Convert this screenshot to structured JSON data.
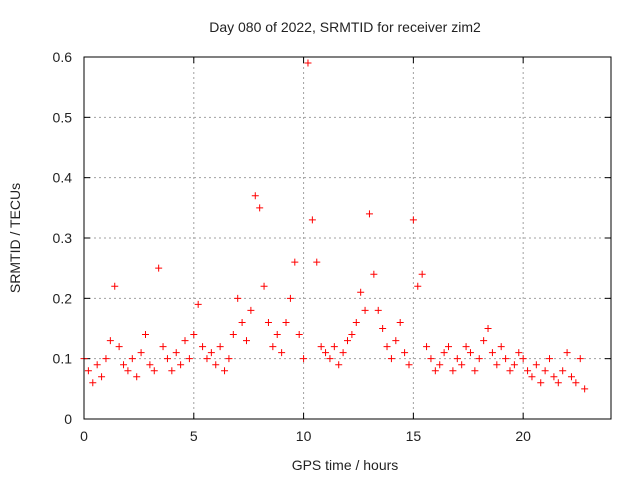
{
  "chart_data": {
    "type": "scatter",
    "title": "Day 080 of 2022, SRMTID for receiver zim2",
    "xlabel": "GPS time / hours",
    "ylabel": "SRMTID / TECUs",
    "xlim": [
      0,
      24
    ],
    "ylim": [
      0,
      0.6
    ],
    "xticks": [
      0,
      5,
      10,
      15,
      20
    ],
    "xtick_labels": [
      "0",
      "5",
      "10",
      "15",
      "20"
    ],
    "yticks": [
      0,
      0.1,
      0.2,
      0.3,
      0.4,
      0.5,
      0.6
    ],
    "ytick_labels": [
      "0",
      "0.1",
      "0.2",
      "0.3",
      "0.4",
      "0.5",
      "0.6"
    ],
    "grid": true,
    "marker": "+",
    "color": "#ff0000",
    "series": [
      {
        "name": "SRMTID",
        "x": [
          0.0,
          0.2,
          0.4,
          0.6,
          0.8,
          1.0,
          1.2,
          1.4,
          1.6,
          1.8,
          2.0,
          2.2,
          2.4,
          2.6,
          2.8,
          3.0,
          3.2,
          3.4,
          3.6,
          3.8,
          4.0,
          4.2,
          4.4,
          4.6,
          4.8,
          5.0,
          5.2,
          5.4,
          5.6,
          5.8,
          6.0,
          6.2,
          6.4,
          6.6,
          6.8,
          7.0,
          7.2,
          7.4,
          7.6,
          7.8,
          8.0,
          8.2,
          8.4,
          8.6,
          8.8,
          9.0,
          9.2,
          9.4,
          9.6,
          9.8,
          10.0,
          10.2,
          10.4,
          10.6,
          10.8,
          11.0,
          11.2,
          11.4,
          11.6,
          11.8,
          12.0,
          12.2,
          12.4,
          12.6,
          12.8,
          13.0,
          13.2,
          13.4,
          13.6,
          13.8,
          14.0,
          14.2,
          14.4,
          14.6,
          14.8,
          15.0,
          15.2,
          15.4,
          15.6,
          15.8,
          16.0,
          16.2,
          16.4,
          16.6,
          16.8,
          17.0,
          17.2,
          17.4,
          17.6,
          17.8,
          18.0,
          18.2,
          18.4,
          18.6,
          18.8,
          19.0,
          19.2,
          19.4,
          19.6,
          19.8,
          20.0,
          20.2,
          20.4,
          20.6,
          20.8,
          21.0,
          21.2,
          21.4,
          21.6,
          21.8,
          22.0,
          22.2,
          22.4,
          22.6,
          22.8
        ],
        "y": [
          0.1,
          0.08,
          0.06,
          0.09,
          0.07,
          0.1,
          0.13,
          0.22,
          0.12,
          0.09,
          0.08,
          0.1,
          0.07,
          0.11,
          0.14,
          0.09,
          0.08,
          0.25,
          0.12,
          0.1,
          0.08,
          0.11,
          0.09,
          0.13,
          0.1,
          0.14,
          0.19,
          0.12,
          0.1,
          0.11,
          0.09,
          0.12,
          0.08,
          0.1,
          0.14,
          0.2,
          0.16,
          0.13,
          0.18,
          0.37,
          0.35,
          0.22,
          0.16,
          0.12,
          0.14,
          0.11,
          0.16,
          0.2,
          0.26,
          0.14,
          0.1,
          0.59,
          0.33,
          0.26,
          0.12,
          0.11,
          0.1,
          0.12,
          0.09,
          0.11,
          0.13,
          0.14,
          0.16,
          0.21,
          0.18,
          0.34,
          0.24,
          0.18,
          0.15,
          0.12,
          0.1,
          0.13,
          0.16,
          0.11,
          0.09,
          0.33,
          0.22,
          0.24,
          0.12,
          0.1,
          0.08,
          0.09,
          0.11,
          0.12,
          0.08,
          0.1,
          0.09,
          0.12,
          0.11,
          0.08,
          0.1,
          0.13,
          0.15,
          0.11,
          0.09,
          0.12,
          0.1,
          0.08,
          0.09,
          0.11,
          0.1,
          0.08,
          0.07,
          0.09,
          0.06,
          0.08,
          0.1,
          0.07,
          0.06,
          0.08,
          0.11,
          0.07,
          0.06,
          0.1,
          0.05
        ]
      }
    ]
  }
}
